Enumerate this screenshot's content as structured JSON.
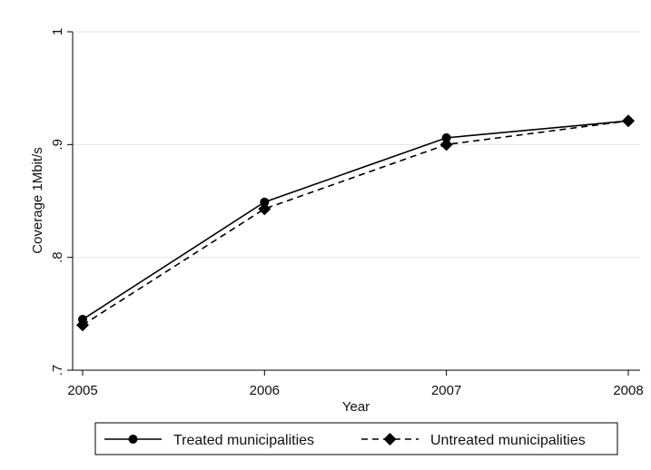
{
  "chart_data": {
    "type": "line",
    "title": "",
    "xlabel": "Year",
    "ylabel": "Coverage 1Mbit/s",
    "x": [
      2005,
      2006,
      2007,
      2008
    ],
    "x_tick_labels": [
      "2005",
      "2006",
      "2007",
      "2008"
    ],
    "xlim": [
      2005,
      2008
    ],
    "y_ticks": [
      0.7,
      0.8,
      0.9,
      1.0
    ],
    "y_tick_labels": [
      ".7",
      ".8",
      ".9",
      "1"
    ],
    "ylim": [
      0.7,
      1.0
    ],
    "grid": "horizontal",
    "legend_position": "bottom",
    "series": [
      {
        "name": "Treated municipalities",
        "values": [
          0.745,
          0.849,
          0.906,
          0.921
        ],
        "marker": "circle",
        "line_style": "solid",
        "color": "#000000"
      },
      {
        "name": "Untreated municipalities",
        "values": [
          0.74,
          0.843,
          0.9,
          0.921
        ],
        "marker": "diamond",
        "line_style": "dashed",
        "color": "#000000"
      }
    ]
  }
}
